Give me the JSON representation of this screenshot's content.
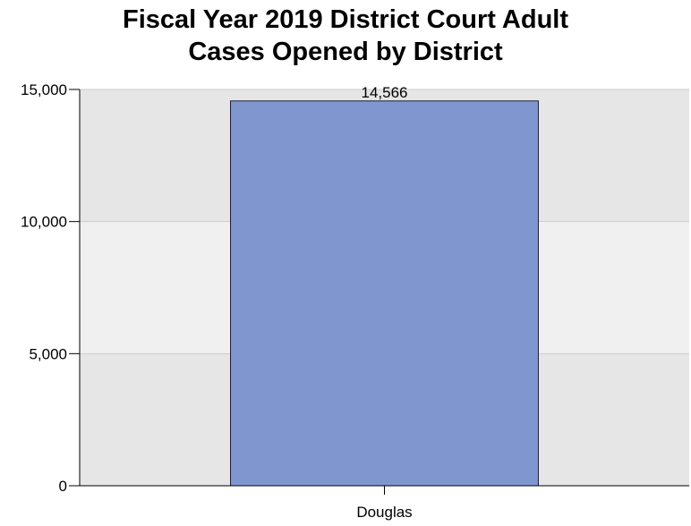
{
  "chart_data": {
    "type": "bar",
    "title_lines": [
      "Fiscal Year 2019 District Court Adult",
      "Cases Opened by District"
    ],
    "categories": [
      "Douglas"
    ],
    "values": [
      14566
    ],
    "data_labels": [
      "14,566"
    ],
    "xlabel": "",
    "ylabel": "",
    "ylim": [
      0,
      15000
    ],
    "yticks": [
      0,
      5000,
      10000,
      15000
    ],
    "ytick_labels": [
      "0",
      "5,000",
      "10,000",
      "15,000"
    ],
    "grid": true,
    "legend": "none",
    "colors": {
      "bar": "#8096cf",
      "bar_edge": "#1a1a3a",
      "band_dark": "#e6e6e6",
      "band_light": "#f0f0f0",
      "gridline": "#cccccc",
      "axis": "#000000"
    }
  }
}
